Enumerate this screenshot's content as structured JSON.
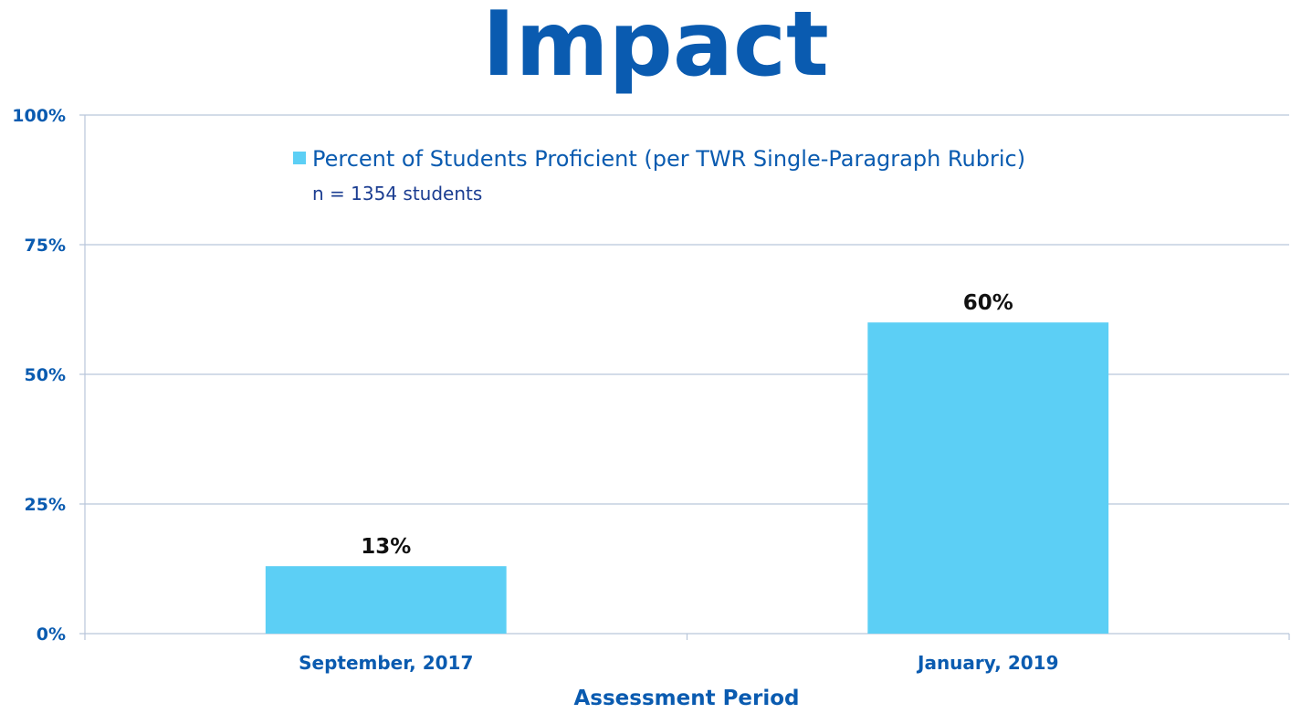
{
  "title": "Impact",
  "chart_data": {
    "type": "bar",
    "categories": [
      "September, 2017",
      "January, 2019"
    ],
    "series": [
      {
        "name": "Percent of Students Proficient (per TWR Single-Paragraph Rubric)",
        "values": [
          13,
          60
        ],
        "labels": [
          "13%",
          "60%"
        ]
      }
    ],
    "ylim": [
      0,
      100
    ],
    "yticks": [
      0,
      25,
      50,
      75,
      100
    ],
    "ytick_labels": [
      "0%",
      "25%",
      "50%",
      "75%",
      "100%"
    ],
    "xlabel": "Assessment Period",
    "ylabel": "",
    "legend_note": "n = 1354 students",
    "legend_position": "top-center",
    "grid": true
  },
  "colors": {
    "title": "#0a5bb0",
    "axis_text": "#0a5bb0",
    "legend_text": "#0a5bb0",
    "note_text": "#1b3d91",
    "bar": "#5ccff5",
    "grid": "#b9c6da",
    "data_label": "#111111"
  }
}
